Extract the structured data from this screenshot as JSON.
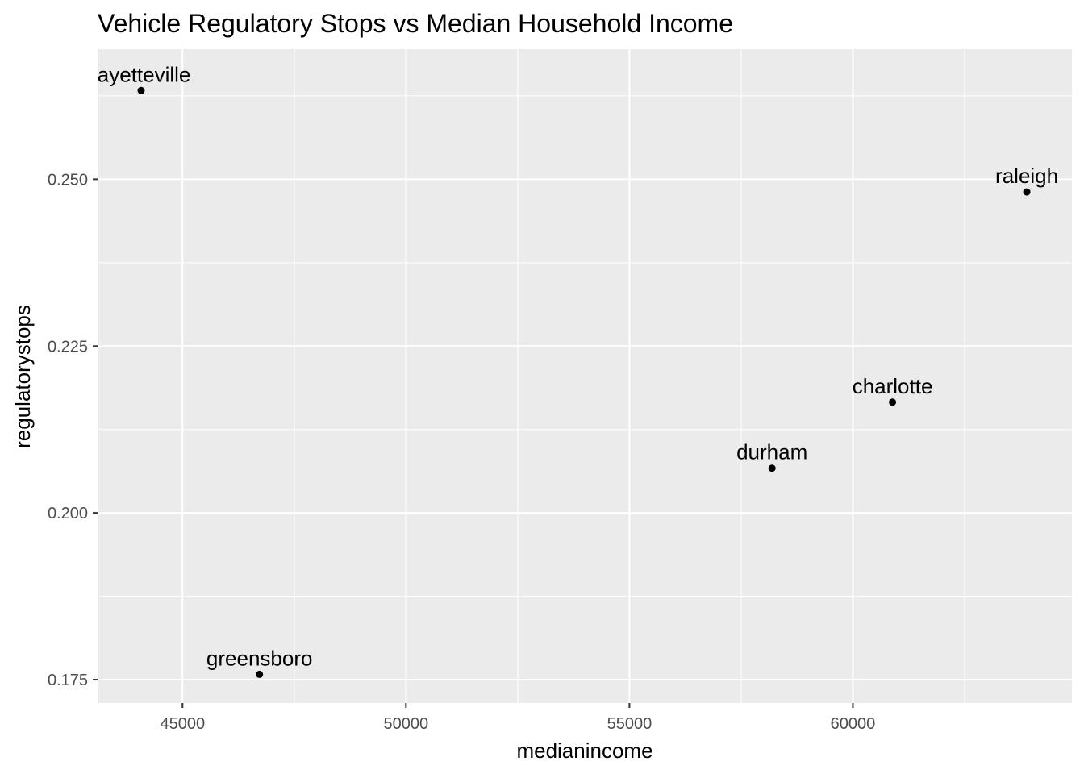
{
  "chart_data": {
    "type": "scatter",
    "title": "Vehicle Regulatory Stops vs Median Household Income",
    "xlabel": "medianincome",
    "ylabel": "regulatorystops",
    "xlim": [
      43100,
      64900
    ],
    "ylim": [
      0.1715,
      0.2695
    ],
    "x_ticks": [
      45000,
      50000,
      55000,
      60000
    ],
    "x_tick_labels": [
      "45000",
      "50000",
      "55000",
      "60000"
    ],
    "y_ticks": [
      0.175,
      0.2,
      0.225,
      0.25
    ],
    "y_tick_labels": [
      "0.175",
      "0.200",
      "0.225",
      "0.250"
    ],
    "grid": true,
    "legend": "none",
    "background_color": "#ebebeb",
    "grid_color": "#ffffff",
    "point_color": "#000000",
    "points": [
      {
        "label": "fayetteville",
        "x": 44074,
        "y": 0.2633
      },
      {
        "label": "greensboro",
        "x": 46722,
        "y": 0.1758
      },
      {
        "label": "durham",
        "x": 58190,
        "y": 0.2067
      },
      {
        "label": "charlotte",
        "x": 60886,
        "y": 0.2166
      },
      {
        "label": "raleigh",
        "x": 63891,
        "y": 0.2481
      }
    ]
  }
}
